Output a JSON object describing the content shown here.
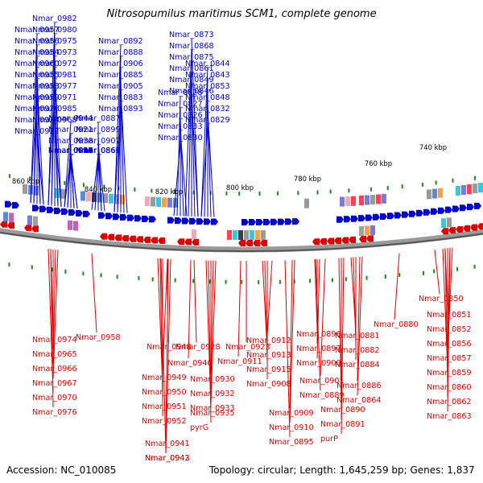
{
  "title": "Nitrosopumilus maritimus SCM1, complete genome",
  "accession": "Accession: NC_010085",
  "summary": "Topology: circular; Length: 1,645,259 bp; Genes: 1,837",
  "colors": {
    "forward": "#0000cc",
    "reverse": "#dd0000",
    "backbone": "#555555",
    "orf": "#1b8a1b"
  },
  "ticks": [
    "740 kbp",
    "760 kbp",
    "780 kbp",
    "800 kbp",
    "820 kbp",
    "840 kbp",
    "860 kbp"
  ],
  "forward_labels": [
    "Nmar_0982",
    "Nmar_0980",
    "Nmar_0975",
    "Nmar_0973",
    "Nmar_0972",
    "Nmar_0981",
    "Nmar_0977",
    "Nmar_0971",
    "Nmar_0985",
    "Nmar_0968",
    "Nmar_0957",
    "Nmar_0956",
    "Nmar_0954",
    "Nmar_0960",
    "Nmar_0955",
    "Nmar_0953",
    "Nmar_0959",
    "Nmar_0926",
    "Nmar_0924",
    "Nmar_0922",
    "Nmar_0944",
    "Nmar_0921",
    "Nmar_0938",
    "Nmar_0920",
    "Nmar_0934",
    "Nmar_0918",
    "Nmar_0946",
    "Nmar_0925",
    "Nmar_0917",
    "Nmar_0903",
    "Nmar_0892",
    "Nmar_0888",
    "Nmar_0906",
    "Nmar_0885",
    "Nmar_0905",
    "Nmar_0883",
    "Nmar_0893",
    "Nmar_0887",
    "Nmar_0899",
    "Nmar_0907",
    "Nmar_0869",
    "Nmar_0867",
    "Nmar_0866",
    "Nmar_0865",
    "Nmar_0873",
    "Nmar_0868",
    "Nmar_0875",
    "Nmar_0861",
    "Nmar_0849",
    "Nmar_0846",
    "Nmar_0844",
    "Nmar_0843",
    "Nmar_0853",
    "Nmar_0848",
    "Nmar_0832",
    "Nmar_0829",
    "Nmar_0828",
    "Nmar_0827",
    "Nmar_0826",
    "Nmar_0833",
    "Nmar_0830"
  ],
  "reverse_labels": [
    "Nmar_0958",
    "Nmar_0974",
    "Nmar_0965",
    "Nmar_0966",
    "Nmar_0967",
    "Nmar_0970",
    "Nmar_0976",
    "Nmar_0948",
    "Nmar_0940",
    "Nmar_0949",
    "Nmar_0950",
    "Nmar_0951",
    "Nmar_0952",
    "Nmar_0941",
    "Nmar_0942",
    "Nmar_0943",
    "Nmar_0928",
    "Nmar_0930",
    "Nmar_0932",
    "Nmar_0933",
    "Nmar_0935",
    "pyrG",
    "Nmar_0923",
    "Nmar_0911",
    "Nmar_0912",
    "Nmar_0913",
    "Nmar_0915",
    "Nmar_0908",
    "Nmar_0909",
    "Nmar_0910",
    "Nmar_0895",
    "Nmar_0896",
    "Nmar_0897",
    "Nmar_0900",
    "Nmar_0901",
    "Nmar_0889",
    "Nmar_0890",
    "Nmar_0891",
    "purP",
    "Nmar_0880",
    "Nmar_0881",
    "Nmar_0882",
    "Nmar_0884",
    "Nmar_0886",
    "Nmar_0864",
    "Nmar_0850",
    "Nmar_0851",
    "Nmar_0852",
    "Nmar_0856",
    "Nmar_0857",
    "Nmar_0859",
    "Nmar_0860",
    "Nmar_0862",
    "Nmar_0863"
  ]
}
